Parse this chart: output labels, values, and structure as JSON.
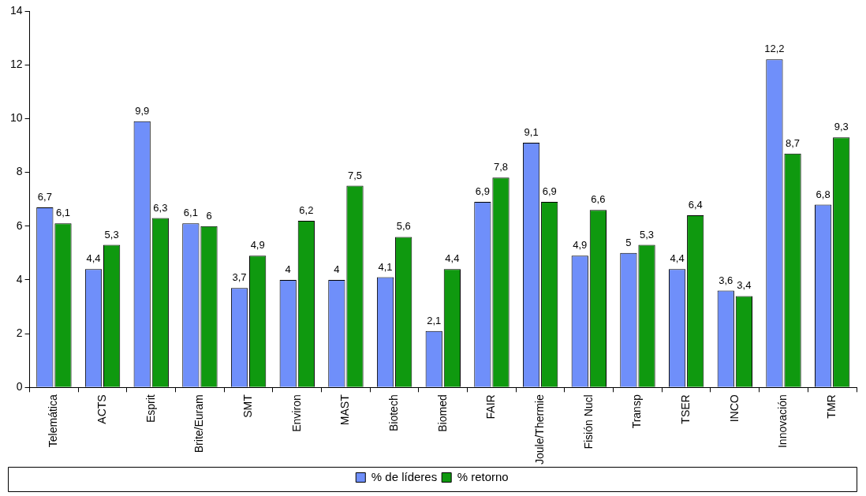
{
  "chart_data": {
    "type": "bar",
    "categories": [
      "Telemática",
      "ACTS",
      "Esprit",
      "Brite/Euram",
      "SMT",
      "Environ",
      "MAST",
      "Biotech",
      "Biomed",
      "FAIR",
      "Joule/Thermie",
      "Fisión Nucl",
      "Transp",
      "TSER",
      "INCO",
      "Innovación",
      "TMR"
    ],
    "series": [
      {
        "name": "% de líderes",
        "color": "#6f8ffa",
        "values": [
          6.7,
          4.4,
          9.9,
          6.1,
          3.7,
          4,
          4,
          4.1,
          2.1,
          6.9,
          9.1,
          4.9,
          5,
          4.4,
          3.6,
          12.2,
          6.8
        ],
        "value_labels": [
          "6,7",
          "4,4",
          "9,9",
          "6,1",
          "3,7",
          "4",
          "4",
          "4,1",
          "2,1",
          "6,9",
          "9,1",
          "4,9",
          "5",
          "4,4",
          "3,6",
          "12,2",
          "6,8"
        ]
      },
      {
        "name": "% retorno",
        "color": "#0f990f",
        "values": [
          6.1,
          5.3,
          6.3,
          6,
          4.9,
          6.2,
          7.5,
          5.6,
          4.4,
          7.8,
          6.9,
          6.6,
          5.3,
          6.4,
          3.4,
          8.7,
          9.3
        ],
        "value_labels": [
          "6,1",
          "5,3",
          "6,3",
          "6",
          "4,9",
          "6,2",
          "7,5",
          "5,6",
          "4,4",
          "7,8",
          "6,9",
          "6,6",
          "5,3",
          "6,4",
          "3,4",
          "8,7",
          "9,3"
        ]
      }
    ],
    "ylim": [
      0,
      14
    ],
    "yticks": [
      0,
      2,
      4,
      6,
      8,
      10,
      12,
      14
    ],
    "grid": false,
    "legend": "bottom"
  }
}
